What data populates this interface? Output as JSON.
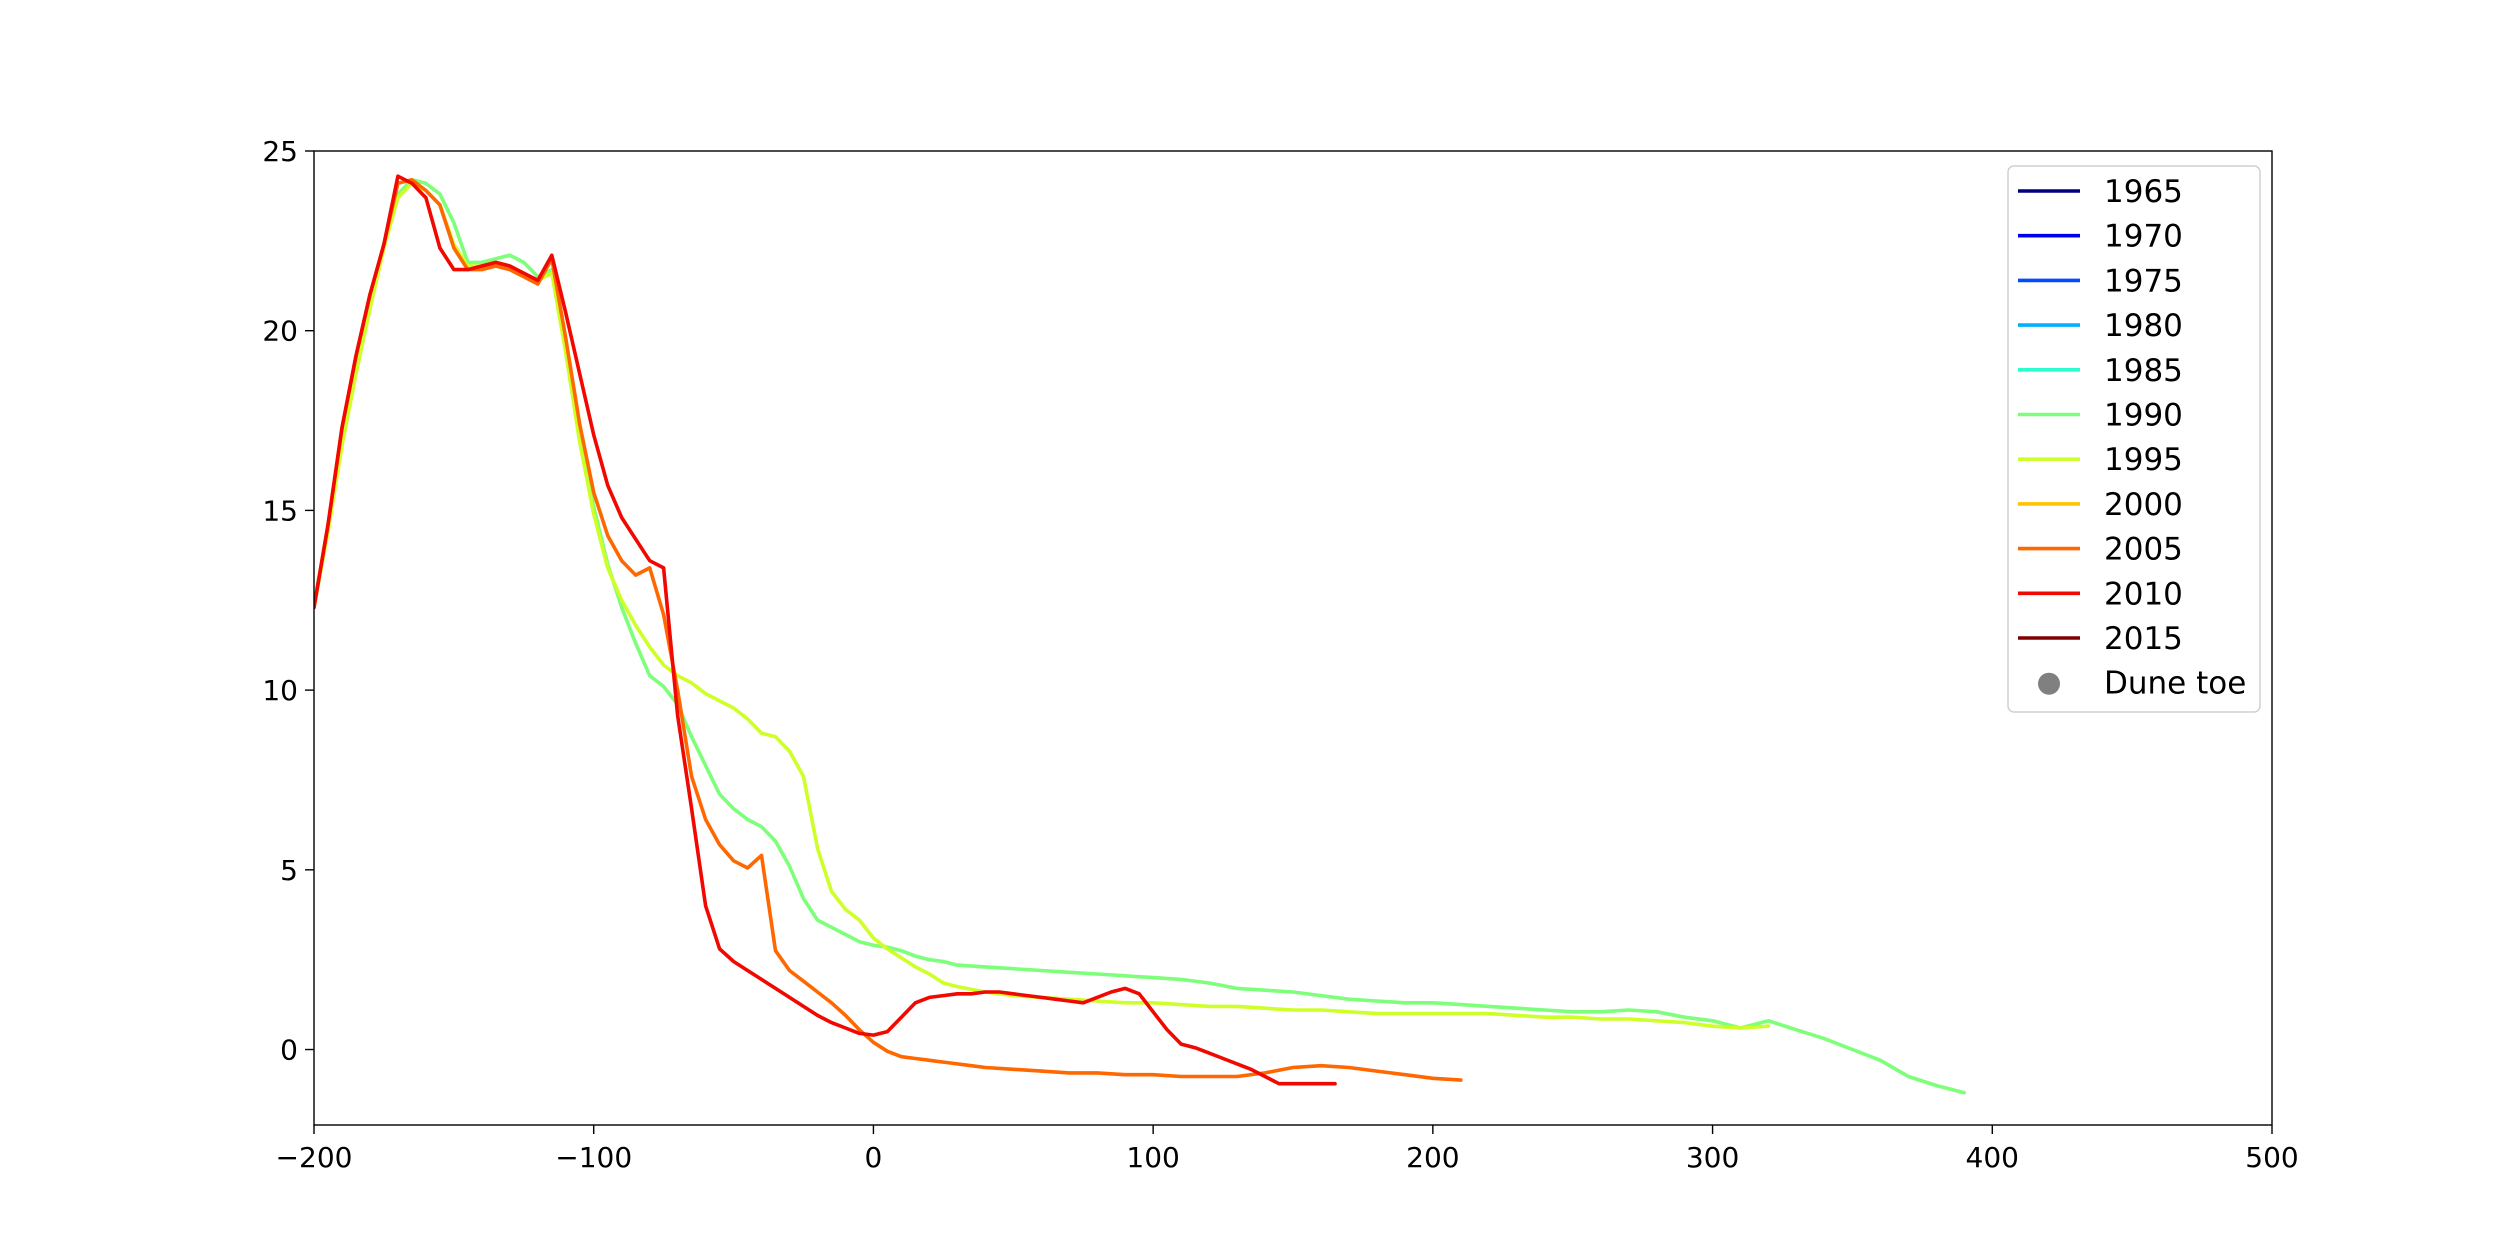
{
  "chart_data": {
    "type": "line",
    "title": "",
    "xlabel": "",
    "ylabel": "",
    "xlim": [
      -200,
      500
    ],
    "ylim": [
      -2.1,
      25
    ],
    "x_ticks": [
      -200,
      -100,
      0,
      100,
      200,
      300,
      400,
      500
    ],
    "y_ticks": [
      0,
      5,
      10,
      15,
      20,
      25
    ],
    "x_tick_labels": [
      "−200",
      "−100",
      "0",
      "100",
      "200",
      "300",
      "400",
      "500"
    ],
    "y_tick_labels": [
      "0",
      "5",
      "10",
      "15",
      "20",
      "25"
    ],
    "grid": false,
    "legend_position": "top-right",
    "legend": [
      {
        "name": "1965",
        "color": "#00007f",
        "kind": "line"
      },
      {
        "name": "1970",
        "color": "#0000f1",
        "kind": "line"
      },
      {
        "name": "1975",
        "color": "#004cff",
        "kind": "line"
      },
      {
        "name": "1980",
        "color": "#00b0ff",
        "kind": "line"
      },
      {
        "name": "1985",
        "color": "#29ffce",
        "kind": "line"
      },
      {
        "name": "1990",
        "color": "#7dff7a",
        "kind": "line"
      },
      {
        "name": "1995",
        "color": "#ceff29",
        "kind": "line"
      },
      {
        "name": "2000",
        "color": "#ffc400",
        "kind": "line"
      },
      {
        "name": "2005",
        "color": "#ff6800",
        "kind": "line"
      },
      {
        "name": "2010",
        "color": "#f10800",
        "kind": "line"
      },
      {
        "name": "2015",
        "color": "#7f0000",
        "kind": "line"
      },
      {
        "name": "Dune toe",
        "color": "#808080",
        "kind": "marker"
      }
    ],
    "series": [
      {
        "name": "1990",
        "color": "#7dff7a",
        "x": [
          -200,
          -195,
          -190,
          -185,
          -180,
          -175,
          -170,
          -165,
          -160,
          -155,
          -150,
          -145,
          -140,
          -135,
          -130,
          -125,
          -120,
          -115,
          -110,
          -105,
          -100,
          -95,
          -90,
          -85,
          -80,
          -75,
          -70,
          -65,
          -60,
          -55,
          -50,
          -45,
          -40,
          -35,
          -30,
          -25,
          -20,
          -15,
          -10,
          -5,
          0,
          5,
          10,
          15,
          20,
          25,
          30,
          40,
          50,
          60,
          70,
          80,
          90,
          100,
          110,
          120,
          130,
          140,
          150,
          160,
          170,
          180,
          190,
          200,
          210,
          220,
          230,
          240,
          250,
          260,
          270,
          280,
          290,
          300,
          310,
          320,
          330,
          340,
          350,
          360,
          370,
          380,
          390
        ],
        "y": [
          12.4,
          14.5,
          17.0,
          19.0,
          20.8,
          22.4,
          23.8,
          24.2,
          24.1,
          23.8,
          23.0,
          21.9,
          21.9,
          22.0,
          22.1,
          21.9,
          21.5,
          21.7,
          19.6,
          17.2,
          15.1,
          13.5,
          12.3,
          11.3,
          10.4,
          10.1,
          9.6,
          8.7,
          7.9,
          7.1,
          6.7,
          6.4,
          6.2,
          5.8,
          5.1,
          4.2,
          3.6,
          3.4,
          3.2,
          3.0,
          2.9,
          2.85,
          2.75,
          2.6,
          2.5,
          2.45,
          2.35,
          2.3,
          2.25,
          2.2,
          2.15,
          2.1,
          2.05,
          2.0,
          1.95,
          1.85,
          1.7,
          1.65,
          1.6,
          1.5,
          1.4,
          1.35,
          1.3,
          1.3,
          1.25,
          1.2,
          1.15,
          1.1,
          1.05,
          1.05,
          1.1,
          1.05,
          0.9,
          0.8,
          0.6,
          0.8,
          0.55,
          0.3,
          0.0,
          -0.3,
          -0.75,
          -1.0,
          -1.2
        ]
      },
      {
        "name": "1995",
        "color": "#ceff29",
        "x": [
          -200,
          -195,
          -190,
          -185,
          -180,
          -175,
          -170,
          -165,
          -160,
          -155,
          -150,
          -145,
          -140,
          -135,
          -130,
          -125,
          -120,
          -115,
          -110,
          -105,
          -100,
          -95,
          -90,
          -85,
          -80,
          -75,
          -70,
          -65,
          -60,
          -55,
          -50,
          -45,
          -40,
          -35,
          -30,
          -25,
          -20,
          -15,
          -10,
          -5,
          0,
          5,
          10,
          15,
          20,
          25,
          30,
          40,
          50,
          60,
          70,
          80,
          90,
          100,
          110,
          120,
          130,
          140,
          150,
          160,
          170,
          180,
          190,
          200,
          210,
          220,
          230,
          240,
          250,
          260,
          270,
          280,
          290,
          300,
          310,
          320
        ],
        "y": [
          12.3,
          14.4,
          16.8,
          18.8,
          20.6,
          22.3,
          23.7,
          24.1,
          23.9,
          23.5,
          22.4,
          21.8,
          21.8,
          21.9,
          21.8,
          21.6,
          21.4,
          21.6,
          19.4,
          16.9,
          14.9,
          13.4,
          12.5,
          11.8,
          11.2,
          10.7,
          10.4,
          10.2,
          9.9,
          9.7,
          9.5,
          9.2,
          8.8,
          8.7,
          8.3,
          7.6,
          5.6,
          4.4,
          3.9,
          3.6,
          3.1,
          2.8,
          2.55,
          2.3,
          2.1,
          1.85,
          1.75,
          1.6,
          1.5,
          1.45,
          1.4,
          1.35,
          1.3,
          1.3,
          1.25,
          1.2,
          1.2,
          1.15,
          1.1,
          1.1,
          1.05,
          1.0,
          1.0,
          1.0,
          1.0,
          1.0,
          0.95,
          0.9,
          0.9,
          0.85,
          0.85,
          0.8,
          0.75,
          0.65,
          0.6,
          0.65
        ]
      },
      {
        "name": "2005",
        "color": "#ff6800",
        "x": [
          -200,
          -195,
          -190,
          -185,
          -180,
          -175,
          -170,
          -165,
          -160,
          -155,
          -150,
          -145,
          -140,
          -135,
          -130,
          -125,
          -120,
          -115,
          -110,
          -105,
          -100,
          -95,
          -90,
          -85,
          -80,
          -75,
          -70,
          -65,
          -60,
          -55,
          -50,
          -45,
          -40,
          -35,
          -30,
          -25,
          -20,
          -15,
          -10,
          -5,
          0,
          5,
          10,
          15,
          20,
          25,
          30,
          35,
          40,
          50,
          60,
          70,
          80,
          90,
          100,
          110,
          120,
          130,
          140,
          150,
          160,
          170,
          180,
          190,
          200,
          210
        ],
        "y": [
          12.3,
          14.6,
          17.3,
          19.3,
          21.0,
          22.4,
          24.1,
          24.2,
          23.9,
          23.5,
          22.3,
          21.7,
          21.7,
          21.8,
          21.7,
          21.5,
          21.3,
          22.0,
          19.8,
          17.4,
          15.5,
          14.3,
          13.6,
          13.2,
          13.4,
          12.1,
          10.0,
          7.6,
          6.4,
          5.7,
          5.25,
          5.05,
          5.4,
          2.75,
          2.2,
          1.9,
          1.6,
          1.3,
          0.95,
          0.55,
          0.2,
          -0.05,
          -0.2,
          -0.25,
          -0.3,
          -0.35,
          -0.4,
          -0.45,
          -0.5,
          -0.55,
          -0.6,
          -0.65,
          -0.65,
          -0.7,
          -0.7,
          -0.75,
          -0.75,
          -0.75,
          -0.65,
          -0.5,
          -0.45,
          -0.5,
          -0.6,
          -0.7,
          -0.8,
          -0.85
        ]
      },
      {
        "name": "2010",
        "color": "#f10800",
        "x": [
          -200,
          -195,
          -190,
          -185,
          -180,
          -175,
          -170,
          -165,
          -160,
          -155,
          -150,
          -145,
          -140,
          -135,
          -130,
          -125,
          -120,
          -115,
          -110,
          -105,
          -100,
          -95,
          -90,
          -85,
          -80,
          -75,
          -70,
          -65,
          -60,
          -55,
          -50,
          -45,
          -40,
          -35,
          -30,
          -25,
          -20,
          -15,
          -10,
          -5,
          0,
          5,
          10,
          15,
          20,
          25,
          30,
          35,
          40,
          45,
          50,
          55,
          60,
          65,
          70,
          75,
          80,
          85,
          90,
          95,
          100,
          105,
          110,
          115,
          120,
          125,
          130,
          135,
          140,
          145,
          150,
          155,
          160,
          165
        ],
        "y": [
          12.3,
          14.6,
          17.3,
          19.3,
          21.0,
          22.4,
          24.3,
          24.1,
          23.7,
          22.3,
          21.7,
          21.7,
          21.8,
          21.9,
          21.8,
          21.6,
          21.4,
          22.1,
          20.5,
          18.8,
          17.1,
          15.7,
          14.8,
          14.2,
          13.6,
          13.4,
          9.3,
          6.7,
          4.0,
          2.8,
          2.45,
          2.2,
          1.95,
          1.7,
          1.45,
          1.2,
          0.95,
          0.75,
          0.6,
          0.45,
          0.4,
          0.5,
          0.9,
          1.3,
          1.45,
          1.5,
          1.55,
          1.55,
          1.6,
          1.6,
          1.55,
          1.5,
          1.45,
          1.4,
          1.35,
          1.3,
          1.45,
          1.6,
          1.7,
          1.55,
          1.05,
          0.55,
          0.15,
          0.05,
          -0.1,
          -0.25,
          -0.4,
          -0.55,
          -0.75,
          -0.95,
          -0.95,
          -0.95,
          -0.95,
          -0.95
        ]
      }
    ],
    "empty_series": [
      "1965",
      "1970",
      "1975",
      "1980",
      "1985",
      "2000",
      "2015"
    ]
  }
}
